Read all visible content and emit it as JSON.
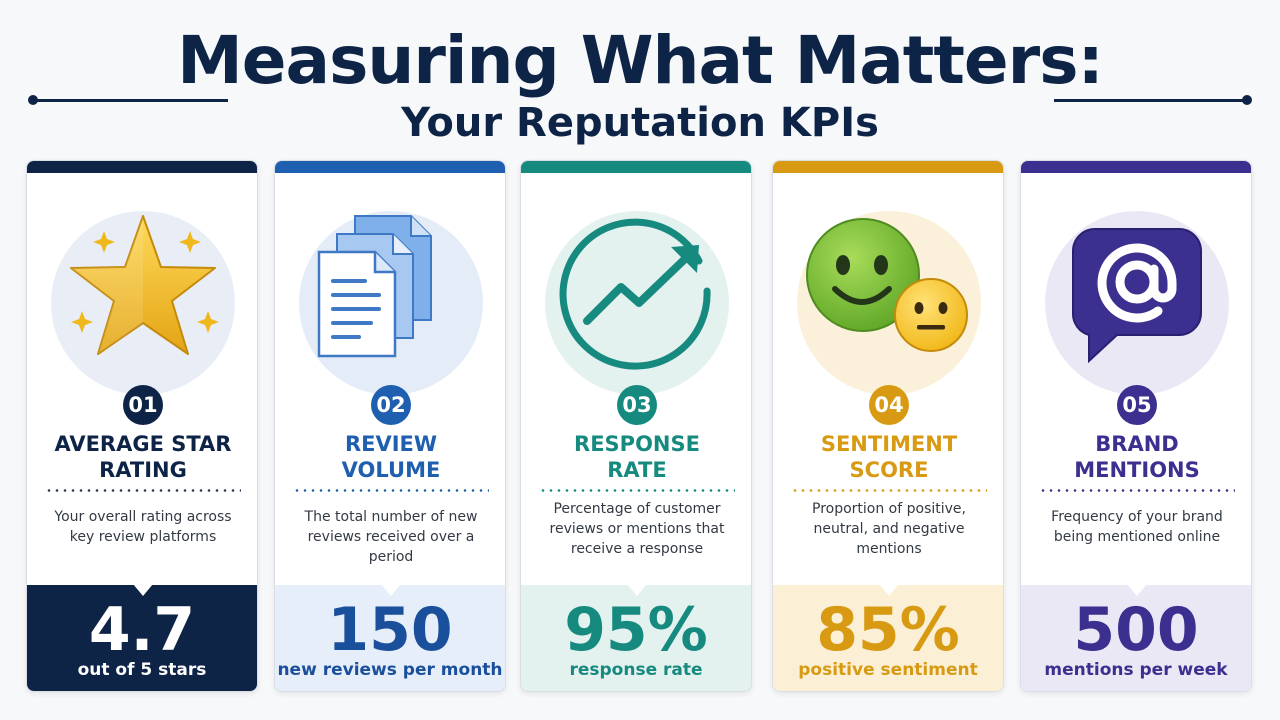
{
  "header": {
    "title": "Measuring What Matters:",
    "subtitle": "Your Reputation KPIs"
  },
  "colors": {
    "navy": "#0e2447",
    "blue": "#1f5fb0",
    "teal": "#178a80",
    "amber": "#d89a12",
    "purple": "#3b2f8f"
  },
  "kpis": [
    {
      "number": "01",
      "title_line1": "AVERAGE STAR",
      "title_line2": "RATING",
      "description": "Your overall rating across key review platforms",
      "value": "4.7",
      "unit": "out of 5 stars",
      "icon": "star-icon",
      "color": "#0e2447"
    },
    {
      "number": "02",
      "title_line1": "REVIEW",
      "title_line2": "VOLUME",
      "description": "The total number of new reviews received over a period",
      "value": "150",
      "unit": "new reviews per month",
      "icon": "documents-icon",
      "color": "#1f5fb0"
    },
    {
      "number": "03",
      "title_line1": "RESPONSE",
      "title_line2": "RATE",
      "description": "Percentage of customer reviews or mentions that receive a response",
      "value": "95%",
      "unit": "response rate",
      "icon": "trend-up-icon",
      "color": "#178a80"
    },
    {
      "number": "04",
      "title_line1": "SENTIMENT",
      "title_line2": "SCORE",
      "description": "Proportion of positive, neutral, and negative mentions",
      "value": "85%",
      "unit": "positive sentiment",
      "icon": "smiley-faces-icon",
      "color": "#d89a12"
    },
    {
      "number": "05",
      "title_line1": "BRAND",
      "title_line2": "MENTIONS",
      "description": "Frequency of your brand being mentioned online",
      "value": "500",
      "unit": "mentions per week",
      "icon": "at-sign-chat-icon",
      "color": "#3b2f8f"
    }
  ]
}
